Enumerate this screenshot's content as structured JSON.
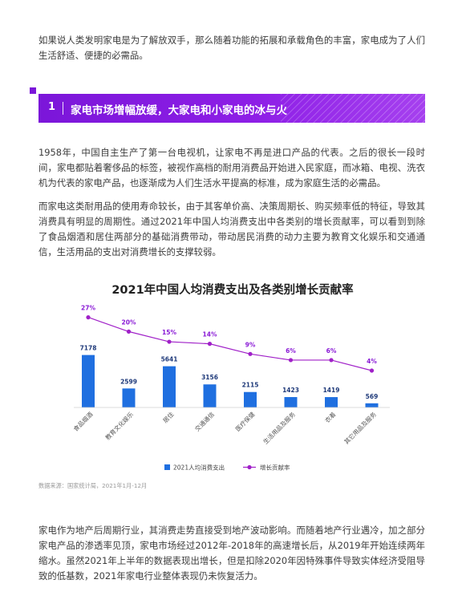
{
  "intro": "如果说人类发明家电是为了解放双手，那么随着功能的拓展和承载角色的丰富，家电成为了人们生活舒适、便捷的必需品。",
  "section": {
    "number": "1",
    "title": "家电市场增幅放缓，大家电和小家电的冰与火"
  },
  "paragraph_1": "1958年，中国自主生产了第一台电视机，让家电不再是进口产品的代表。之后的很长一段时间，家电都贴着奢侈品的标签，被视作高档的耐用消费品开始进入民家庭，而冰箱、电视、洗衣机为代表的家电产品，也逐渐成为人们生活水平提高的标准，成为家庭生活的必需品。",
  "paragraph_2": "而家电这类耐用品的使用寿命较长，由于其客单价高、决策周期长、购买频率低的特征，导致其消费具有明显的周期性。通过2021年中国人均消费支出中各类别的增长贡献率，可以看到到除了食品烟酒和居住两部分的基础消费带动，带动居民消费的动力主要为教育文化娱乐和交通通信，生活用品的支出对消费增长的支撑较弱。",
  "chart_data": {
    "type": "bar",
    "title": "2021年中国人均消费支出及各类别增长贡献率",
    "categories": [
      "食品烟酒",
      "教育文化娱乐",
      "居住",
      "交通通信",
      "医疗保健",
      "生活用品及服务",
      "衣着",
      "其它用品及服务"
    ],
    "series": [
      {
        "name": "2021人均消费支出",
        "type": "bar",
        "color": "#1f6fe0",
        "values": [
          7178,
          2599,
          5641,
          3156,
          2115,
          1423,
          1419,
          569
        ],
        "labels": [
          "7178",
          "2599",
          "5641",
          "3156",
          "2115",
          "1423",
          "1419",
          "569"
        ]
      },
      {
        "name": "增长贡献率",
        "type": "line",
        "color": "#a020c8",
        "values": [
          27,
          20,
          15,
          14,
          9,
          6,
          6,
          4
        ],
        "labels": [
          "27%",
          "20%",
          "15%",
          "14%",
          "9%",
          "6%",
          "6%",
          "4%"
        ]
      }
    ],
    "ylim_bar": [
      0,
      9000
    ],
    "ylim_line": [
      0,
      30
    ],
    "grid": false,
    "legend_position": "bottom"
  },
  "source": "数据来源：国家统计局，2021年1月-12月",
  "paragraph_3": "家电作为地产后周期行业，其消费走势直接受到地产波动影响。而随着地产行业遇冷，加之部分家电产品的渗透率见顶，家电市场经过2012年-2018年的高速增长后，从2019年开始连续两年缩水。虽然2021年上半年的数据表现出增长，但是扣除2020年因特殊事件导致实体经济受阻导致的低基数，2021年家电行业整体表现仍未恢复活力。"
}
